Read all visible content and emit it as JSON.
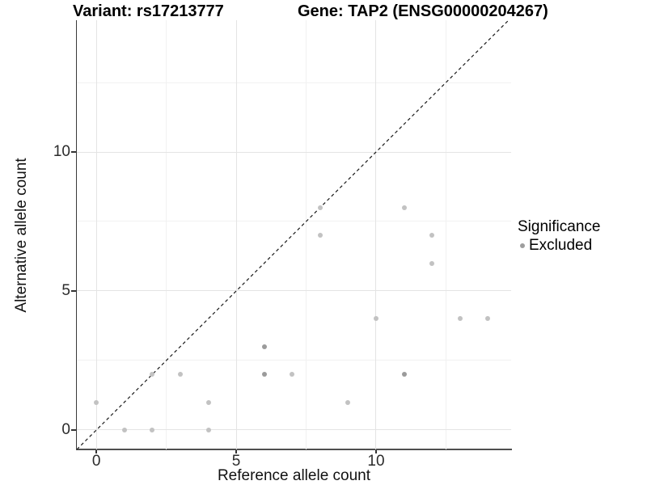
{
  "chart_data": {
    "type": "scatter",
    "titles": {
      "left": "Variant: rs17213777",
      "right": "Gene: TAP2 (ENSG00000204267)"
    },
    "xlabel": "Reference allele count",
    "ylabel": "Alternative allele count",
    "xlim": [
      -0.7,
      14.83
    ],
    "ylim": [
      -0.7,
      14.74
    ],
    "x_ticks": [
      0,
      5,
      10
    ],
    "y_ticks": [
      0,
      5,
      10
    ],
    "x_minor_gridlines": [
      2.5,
      7.5,
      12.5
    ],
    "y_minor_gridlines": [
      2.5,
      7.5,
      12.5
    ],
    "grid": true,
    "identity_line": {
      "slope": 1,
      "intercept": 0,
      "style": "dashed",
      "color": "#1a1a1a"
    },
    "series": [
      {
        "name": "Excluded",
        "points": [
          {
            "x": 0,
            "y": 1
          },
          {
            "x": 1,
            "y": 0
          },
          {
            "x": 2,
            "y": 0
          },
          {
            "x": 2,
            "y": 2
          },
          {
            "x": 3,
            "y": 2
          },
          {
            "x": 4,
            "y": 0
          },
          {
            "x": 4,
            "y": 1
          },
          {
            "x": 6,
            "y": 2,
            "dark": true
          },
          {
            "x": 6,
            "y": 3,
            "dark": true
          },
          {
            "x": 7,
            "y": 2
          },
          {
            "x": 8,
            "y": 7
          },
          {
            "x": 8,
            "y": 8
          },
          {
            "x": 9,
            "y": 1
          },
          {
            "x": 10,
            "y": 4
          },
          {
            "x": 11,
            "y": 2,
            "dark": true
          },
          {
            "x": 11,
            "y": 8
          },
          {
            "x": 12,
            "y": 6
          },
          {
            "x": 12,
            "y": 7
          },
          {
            "x": 13,
            "y": 4
          },
          {
            "x": 14,
            "y": 4
          }
        ]
      }
    ],
    "legend": {
      "title": "Significance",
      "position": "right",
      "entries": [
        {
          "label": "Excluded",
          "color": "#9e9e9e"
        }
      ]
    },
    "colors": {
      "point_light": "#c2c2c2",
      "point_dark": "#9b9b9b",
      "grid_major": "#e4e4e4",
      "grid_minor": "#f1f1f1",
      "axis": "#3a3a3a"
    }
  }
}
